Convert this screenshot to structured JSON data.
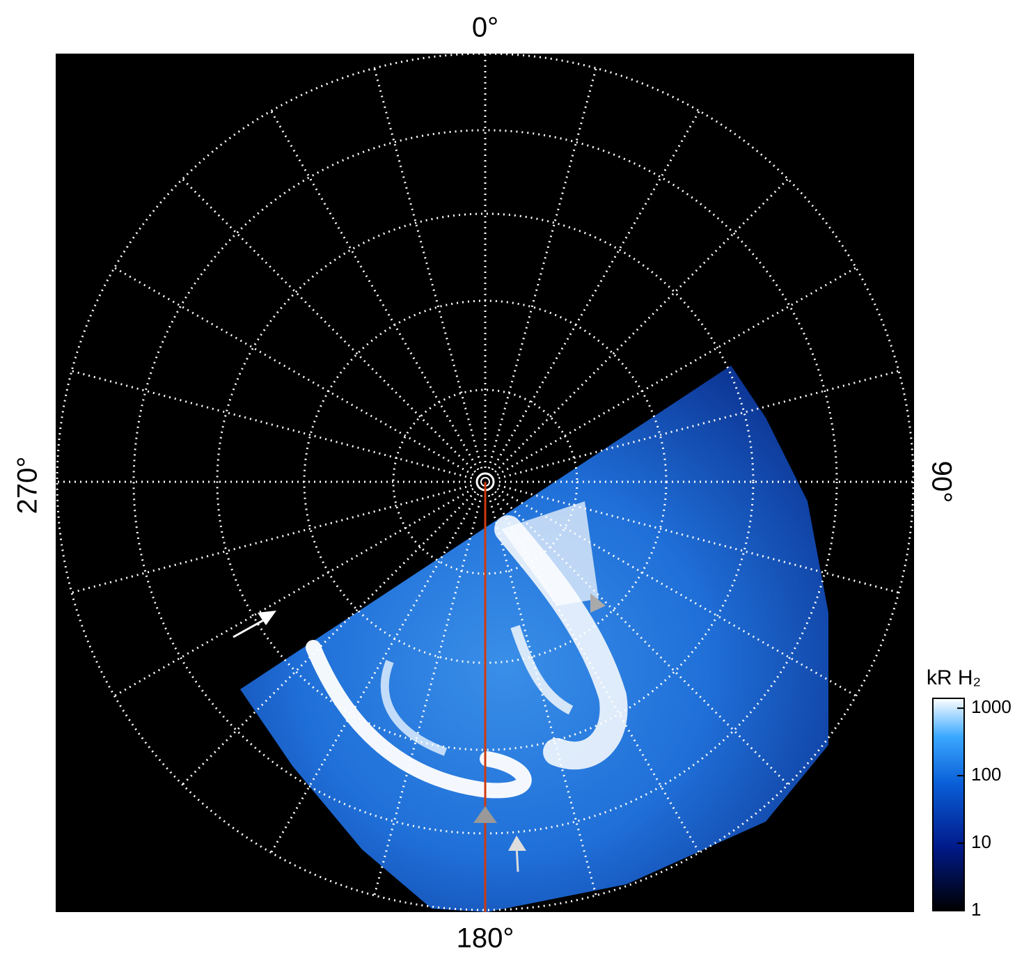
{
  "chart_data": {
    "type": "colorbar",
    "labels": {
      "top": "0°",
      "right": "90°",
      "bottom": "180°",
      "left": "270°"
    },
    "colorbar_title": "kR H₂",
    "log_scale": true,
    "lim": [
      1,
      1400
    ],
    "ticks": [
      1,
      10,
      100,
      1000
    ]
  }
}
